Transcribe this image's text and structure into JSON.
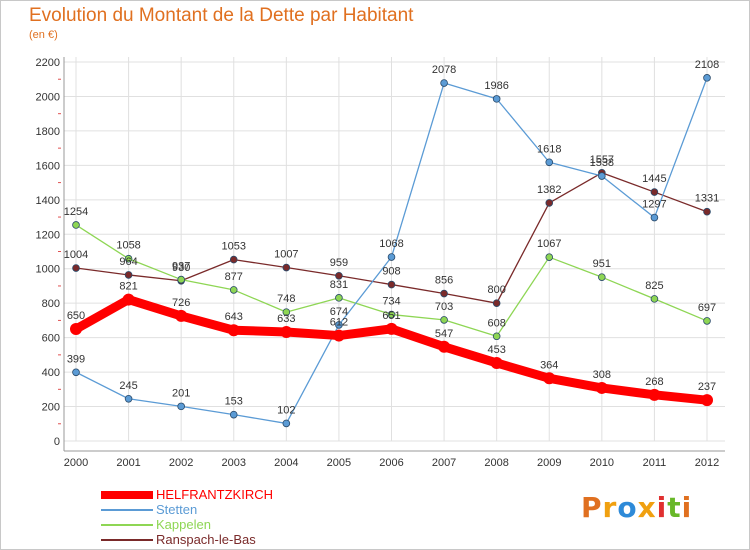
{
  "title": "Evolution du Montant de la Dette par Habitant",
  "subtitle": "(en €)",
  "logo": {
    "letters": [
      "P",
      "r",
      "o",
      "x",
      "i",
      "t",
      "i"
    ],
    "colors": [
      "#e07020",
      "#f0a010",
      "#2e8ad8",
      "#f0a010",
      "#e03030",
      "#68b828",
      "#e07020"
    ]
  },
  "chart_data": {
    "type": "line",
    "x": [
      "2000",
      "2001",
      "2002",
      "2003",
      "2004",
      "2005",
      "2006",
      "2007",
      "2008",
      "2009",
      "2010",
      "2011",
      "2012"
    ],
    "ylim": [
      0,
      2200
    ],
    "yticks": [
      0,
      200,
      400,
      600,
      800,
      1000,
      1200,
      1400,
      1600,
      1800,
      2000,
      2200
    ],
    "grid": true,
    "legend_position": "bottom",
    "series": [
      {
        "name": "HELFRANTZKIRCH",
        "color": "#ff0000",
        "values": [
          650,
          821,
          726,
          643,
          633,
          612,
          651,
          547,
          453,
          364,
          308,
          268,
          237
        ]
      },
      {
        "name": "Stetten",
        "color": "#5b9bd5",
        "values": [
          399,
          245,
          201,
          153,
          102,
          674,
          1068,
          2078,
          1986,
          1618,
          1538,
          1297,
          2108
        ]
      },
      {
        "name": "Kappelen",
        "color": "#8ed654",
        "values": [
          1254,
          1058,
          937,
          877,
          748,
          831,
          734,
          703,
          608,
          1067,
          951,
          825,
          697
        ]
      },
      {
        "name": "Ranspach-le-Bas",
        "color": "#7a2a2a",
        "values": [
          1004,
          964,
          930,
          1053,
          1007,
          959,
          908,
          856,
          800,
          1382,
          1557,
          1445,
          1331
        ]
      }
    ]
  }
}
